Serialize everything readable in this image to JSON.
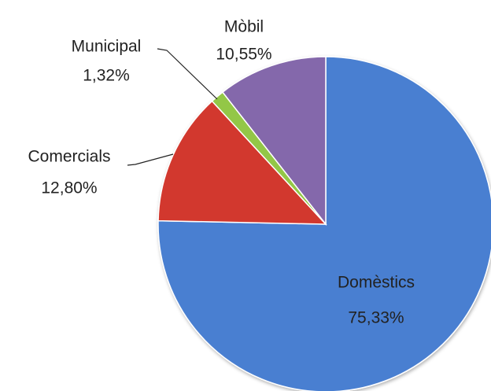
{
  "chart_data": {
    "type": "pie",
    "categories": [
      "Domèstics",
      "Comercials",
      "Municipal",
      "Mòbil"
    ],
    "values": [
      75.33,
      12.8,
      1.32,
      10.55
    ],
    "value_labels": [
      "75,33%",
      "12,80%",
      "1,32%",
      "10,55%"
    ],
    "colors": [
      "#4a7fd1",
      "#d2392f",
      "#93c746",
      "#8467ab"
    ]
  }
}
